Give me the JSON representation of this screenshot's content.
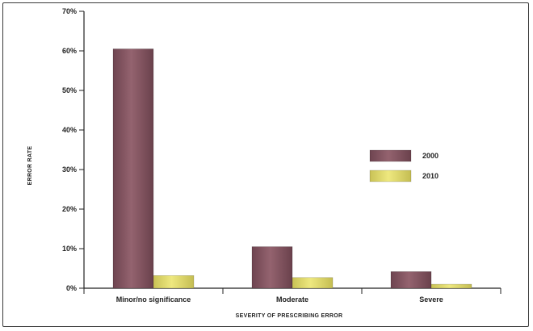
{
  "chart_data": {
    "type": "bar",
    "title": "",
    "xlabel": "SEVERITY OF PRESCRIBING ERROR",
    "ylabel": "ERROR RATE",
    "ylim": [
      0,
      70
    ],
    "y_ticks": [
      0,
      10,
      20,
      30,
      40,
      50,
      60,
      70
    ],
    "y_tick_labels": [
      "0%",
      "10%",
      "20%",
      "30%",
      "40%",
      "50%",
      "60%",
      "70%"
    ],
    "categories": [
      "Minor/no significance",
      "Moderate",
      "Severe"
    ],
    "series": [
      {
        "name": "2000",
        "values": [
          60.5,
          10.5,
          4.2
        ],
        "color": "#8a5a66"
      },
      {
        "name": "2010",
        "values": [
          3.2,
          2.7,
          1.0
        ],
        "color": "#e3dc72"
      }
    ],
    "grid": false,
    "legend": "right"
  }
}
